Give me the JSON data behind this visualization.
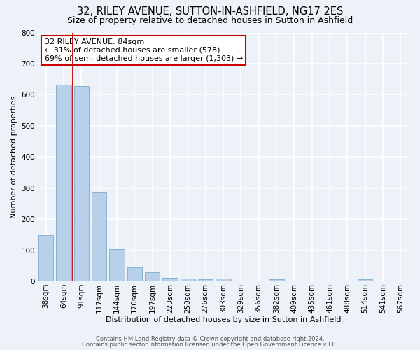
{
  "title1": "32, RILEY AVENUE, SUTTON-IN-ASHFIELD, NG17 2ES",
  "title2": "Size of property relative to detached houses in Sutton in Ashfield",
  "xlabel": "Distribution of detached houses by size in Sutton in Ashfield",
  "ylabel": "Number of detached properties",
  "bar_labels": [
    "38sqm",
    "64sqm",
    "91sqm",
    "117sqm",
    "144sqm",
    "170sqm",
    "197sqm",
    "223sqm",
    "250sqm",
    "276sqm",
    "303sqm",
    "329sqm",
    "356sqm",
    "382sqm",
    "409sqm",
    "435sqm",
    "461sqm",
    "488sqm",
    "514sqm",
    "541sqm",
    "567sqm"
  ],
  "bar_values": [
    148,
    632,
    628,
    289,
    103,
    46,
    30,
    11,
    9,
    7,
    8,
    0,
    0,
    7,
    0,
    0,
    0,
    0,
    6,
    0,
    0
  ],
  "bar_color": "#b8d0ea",
  "bar_edge_color": "#7aabcd",
  "vline_x_data": 1.5,
  "vline_color": "#cc0000",
  "ylim": [
    0,
    800
  ],
  "yticks": [
    0,
    100,
    200,
    300,
    400,
    500,
    600,
    700,
    800
  ],
  "annotation_title": "32 RILEY AVENUE: 84sqm",
  "annotation_line1": "← 31% of detached houses are smaller (578)",
  "annotation_line2": "69% of semi-detached houses are larger (1,303) →",
  "annotation_box_color": "#ffffff",
  "annotation_box_edge": "#cc0000",
  "footer1": "Contains HM Land Registry data © Crown copyright and database right 2024.",
  "footer2": "Contains public sector information licensed under the Open Government Licence v3.0.",
  "bg_color": "#edf2f9",
  "grid_color": "#ffffff",
  "title1_fontsize": 10.5,
  "title2_fontsize": 9.0,
  "ann_fontsize": 8.0,
  "axis_fontsize": 7.5,
  "xlabel_fontsize": 8.0,
  "ylabel_fontsize": 8.0
}
